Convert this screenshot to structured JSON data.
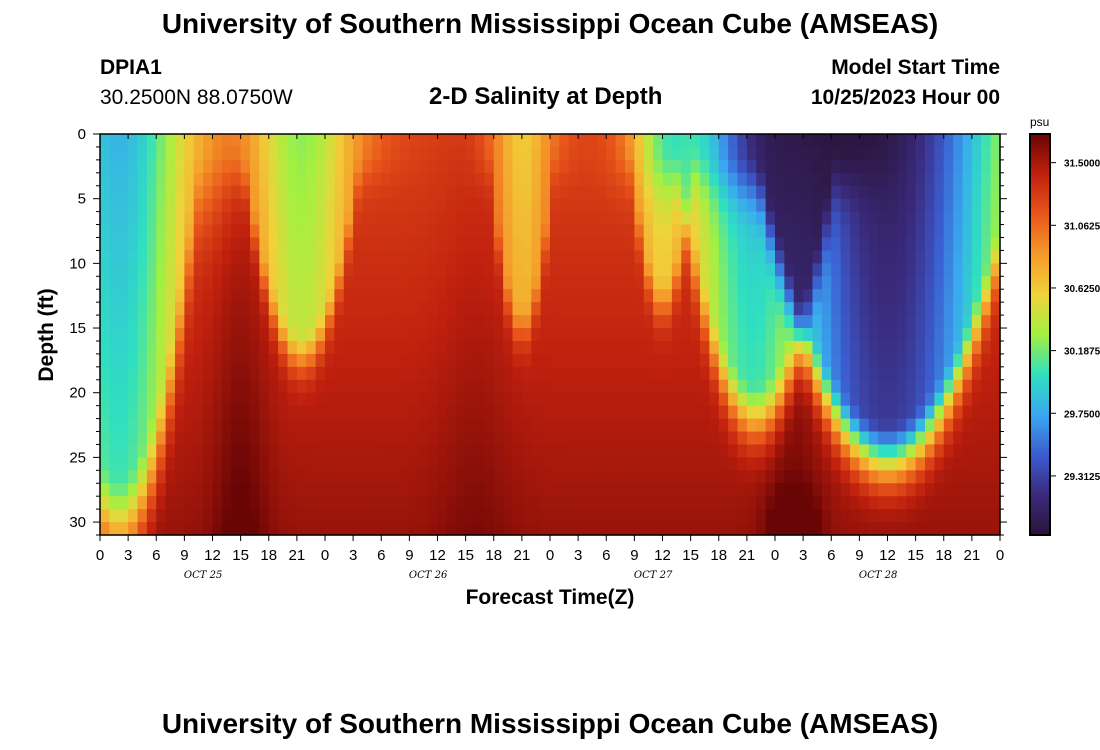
{
  "page": {
    "title": "University of Southern Mississippi Ocean Cube (AMSEAS)",
    "footer_title": "University of Southern Mississippi Ocean Cube (AMSEAS)",
    "station_id": "DPIA1",
    "coordinates": "30.2500N  88.0750W",
    "subtitle": "2-D Salinity at Depth",
    "model_start_label": "Model Start Time",
    "model_start_value": "10/25/2023 Hour 00"
  },
  "colors": {
    "ramp": [
      "#2a1438",
      "#3a2a7c",
      "#3b5ccf",
      "#3aa8f0",
      "#2fe0c0",
      "#a4f040",
      "#f0d23a",
      "#f59a2a",
      "#e8561a",
      "#c0200e",
      "#6a0505"
    ]
  },
  "chart_data": {
    "type": "heatmap",
    "title": "2-D Salinity at Depth",
    "xlabel": "Forecast Time(Z)",
    "ylabel": "Depth (ft)",
    "x_range_hours": [
      0,
      96
    ],
    "y_range_ft": [
      0,
      31
    ],
    "x_tick_labels": [
      "0",
      "3",
      "6",
      "9",
      "12",
      "15",
      "18",
      "21",
      "0",
      "3",
      "6",
      "9",
      "12",
      "15",
      "18",
      "21",
      "0",
      "3",
      "6",
      "9",
      "12",
      "15",
      "18",
      "21",
      "0",
      "3",
      "6",
      "9",
      "12",
      "15",
      "18",
      "21",
      "0"
    ],
    "day_labels": [
      {
        "label": "OCT 25",
        "hour": 11
      },
      {
        "label": "OCT 26",
        "hour": 35
      },
      {
        "label": "OCT 27",
        "hour": 59
      },
      {
        "label": "OCT 28",
        "hour": 83
      }
    ],
    "y_tick_labels": [
      "0",
      "5",
      "10",
      "15",
      "20",
      "25",
      "30"
    ],
    "colorbar": {
      "unit": "psu",
      "range": [
        28.9,
        31.7
      ],
      "tick_labels": [
        "31.5000",
        "31.0625",
        "30.6250",
        "30.1875",
        "29.7500",
        "29.3125"
      ]
    },
    "fresh_lenses": [
      {
        "center_hour": 2.0,
        "half_width_hours": 6.0,
        "min_psu": 29.8,
        "bottom_ft": 26,
        "tail_ft": 6
      },
      {
        "center_hour": 21.5,
        "half_width_hours": 4.5,
        "min_psu": 30.25,
        "bottom_ft": 15,
        "tail_ft": 3
      },
      {
        "center_hour": 45.0,
        "half_width_hours": 2.5,
        "min_psu": 30.6,
        "bottom_ft": 13,
        "tail_ft": 3
      },
      {
        "center_hour": 60.0,
        "half_width_hours": 2.5,
        "min_psu": 30.5,
        "bottom_ft": 11,
        "tail_ft": 3
      },
      {
        "center_hour": 70.0,
        "half_width_hours": 6.0,
        "min_psu": 29.85,
        "bottom_ft": 19,
        "tail_ft": 4
      },
      {
        "center_hour": 84.0,
        "half_width_hours": 10.0,
        "min_psu": 29.05,
        "bottom_ft": 22,
        "tail_ft": 4
      }
    ],
    "high_salinity_cores": [
      {
        "center_hour": 15,
        "half_width_hours": 3,
        "delta_psu": 0.2
      },
      {
        "center_hour": 40,
        "half_width_hours": 4,
        "delta_psu": 0.1
      },
      {
        "center_hour": 74,
        "half_width_hours": 3,
        "delta_psu": 0.15
      }
    ],
    "background_psu_surface": 31.25,
    "background_psu_bottom": 31.55
  }
}
